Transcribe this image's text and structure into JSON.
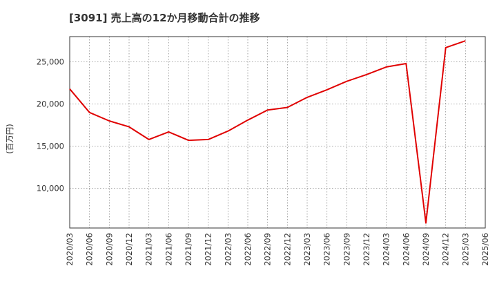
{
  "chart_data": {
    "type": "line",
    "title": "[3091]  売上高の12か月移動合計の推移",
    "ylabel": "(百万円)",
    "xlabel": "",
    "ylim": [
      5300,
      28000
    ],
    "yticks": [
      10000,
      15000,
      20000,
      25000
    ],
    "ytick_labels": [
      "10,000",
      "15,000",
      "20,000",
      "25,000"
    ],
    "categories": [
      "2020/03",
      "2020/06",
      "2020/09",
      "2020/12",
      "2021/03",
      "2021/06",
      "2021/09",
      "2021/12",
      "2022/03",
      "2022/06",
      "2022/09",
      "2022/12",
      "2023/03",
      "2023/06",
      "2023/09",
      "2023/12",
      "2024/03",
      "2024/06",
      "2024/09",
      "2024/12",
      "2025/03",
      "2025/06"
    ],
    "grid": true,
    "series": [
      {
        "name": "売上高",
        "color": "#e00000",
        "values": [
          21800,
          19000,
          18000,
          17300,
          15800,
          16700,
          15700,
          15800,
          16800,
          18100,
          19300,
          19600,
          20800,
          21700,
          22700,
          23500,
          24400,
          24800,
          5900,
          26700,
          27500,
          null
        ]
      }
    ]
  }
}
